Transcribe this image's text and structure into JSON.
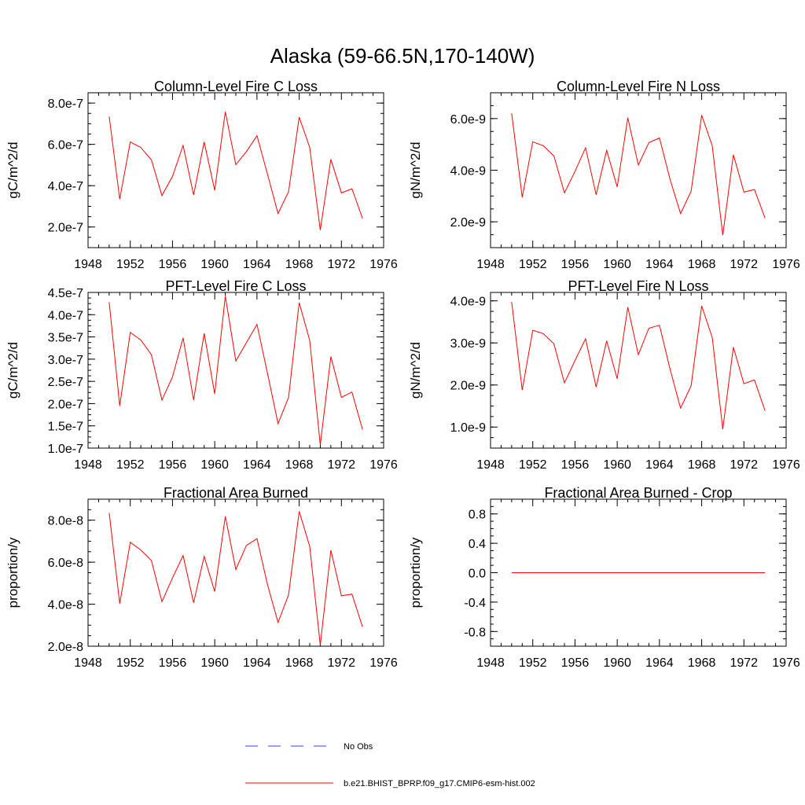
{
  "figure": {
    "title": "Alaska (59-66.5N,170-140W)"
  },
  "colors": {
    "model": "#ff0000",
    "obs": "#3b3bff"
  },
  "legend": [
    {
      "label": "No Obs",
      "style": "dashed",
      "color": "#3b3bff"
    },
    {
      "label": "b.e21.BHIST_BPRP.f09_g17.CMIP6-esm-hist.002",
      "style": "solid",
      "color": "#ff0000"
    }
  ],
  "chart_data": [
    {
      "type": "line",
      "title": "Column-Level Fire C Loss",
      "ylabel": "gC/m^2/d",
      "xlim": [
        1948,
        1976
      ],
      "ylim": [
        1e-07,
        8.5e-07
      ],
      "xticks": [
        1948,
        1952,
        1956,
        1960,
        1964,
        1968,
        1972,
        1976
      ],
      "xtick_labels": [
        "1948",
        "1952",
        "1956",
        "1960",
        "1964",
        "1968",
        "1972",
        "1976"
      ],
      "yticks": [
        2e-07,
        4e-07,
        6e-07,
        8e-07
      ],
      "ytick_labels": [
        "2.0e-7",
        "4.0e-7",
        "6.0e-7",
        "8.0e-7"
      ],
      "x": [
        1950,
        1951,
        1952,
        1953,
        1954,
        1955,
        1956,
        1957,
        1958,
        1959,
        1960,
        1961,
        1962,
        1963,
        1964,
        1965,
        1966,
        1967,
        1968,
        1969,
        1970,
        1971,
        1972,
        1973,
        1974
      ],
      "series": [
        {
          "values": [
            7.35e-07,
            3.35e-07,
            6.12e-07,
            5.85e-07,
            5.25e-07,
            3.52e-07,
            4.45e-07,
            5.95e-07,
            3.55e-07,
            6.12e-07,
            3.78e-07,
            7.58e-07,
            5.02e-07,
            5.65e-07,
            6.42e-07,
            4.55e-07,
            2.65e-07,
            3.72e-07,
            7.32e-07,
            5.85e-07,
            1.85e-07,
            5.28e-07,
            3.65e-07,
            3.85e-07,
            2.42e-07
          ]
        }
      ]
    },
    {
      "type": "line",
      "title": "Column-Level Fire N Loss",
      "ylabel": "gN/m^2/d",
      "xlim": [
        1948,
        1976
      ],
      "ylim": [
        1e-09,
        7e-09
      ],
      "xticks": [
        1948,
        1952,
        1956,
        1960,
        1964,
        1968,
        1972,
        1976
      ],
      "xtick_labels": [
        "1948",
        "1952",
        "1956",
        "1960",
        "1964",
        "1968",
        "1972",
        "1976"
      ],
      "yticks": [
        2e-09,
        4e-09,
        6e-09
      ],
      "ytick_labels": [
        "2.0e-9",
        "4.0e-9",
        "6.0e-9"
      ],
      "x": [
        1950,
        1951,
        1952,
        1953,
        1954,
        1955,
        1956,
        1957,
        1958,
        1959,
        1960,
        1961,
        1962,
        1963,
        1964,
        1965,
        1966,
        1967,
        1968,
        1969,
        1970,
        1971,
        1972,
        1973,
        1974
      ],
      "series": [
        {
          "values": [
            6.2e-09,
            2.95e-09,
            5.1e-09,
            4.95e-09,
            4.55e-09,
            3.12e-09,
            3.95e-09,
            4.87e-09,
            3.05e-09,
            4.77e-09,
            3.35e-09,
            6.03e-09,
            4.2e-09,
            5.07e-09,
            5.25e-09,
            3.65e-09,
            2.32e-09,
            3.18e-09,
            6.13e-09,
            4.95e-09,
            1.48e-09,
            4.6e-09,
            3.15e-09,
            3.25e-09,
            2.15e-09
          ]
        }
      ]
    },
    {
      "type": "line",
      "title": "PFT-Level Fire C Loss",
      "ylabel": "gC/m^2/d",
      "xlim": [
        1948,
        1976
      ],
      "ylim": [
        1e-07,
        4.5e-07
      ],
      "xticks": [
        1948,
        1952,
        1956,
        1960,
        1964,
        1968,
        1972,
        1976
      ],
      "xtick_labels": [
        "1948",
        "1952",
        "1956",
        "1960",
        "1964",
        "1968",
        "1972",
        "1976"
      ],
      "yticks": [
        1e-07,
        1.5e-07,
        2e-07,
        2.5e-07,
        3e-07,
        3.5e-07,
        4e-07,
        4.5e-07
      ],
      "ytick_labels": [
        "1.0e-7",
        "1.5e-7",
        "2.0e-7",
        "2.5e-7",
        "3.0e-7",
        "3.5e-7",
        "4.0e-7",
        "4.5e-7"
      ],
      "x": [
        1950,
        1951,
        1952,
        1953,
        1954,
        1955,
        1956,
        1957,
        1958,
        1959,
        1960,
        1961,
        1962,
        1963,
        1964,
        1965,
        1966,
        1967,
        1968,
        1969,
        1970,
        1971,
        1972,
        1973,
        1974
      ],
      "series": [
        {
          "values": [
            4.28e-07,
            1.95e-07,
            3.6e-07,
            3.43e-07,
            3.1e-07,
            2.08e-07,
            2.6e-07,
            3.48e-07,
            2.08e-07,
            3.58e-07,
            2.22e-07,
            4.42e-07,
            2.96e-07,
            3.37e-07,
            3.78e-07,
            2.68e-07,
            1.55e-07,
            2.14e-07,
            4.27e-07,
            3.42e-07,
            1.07e-07,
            3.06e-07,
            2.14e-07,
            2.26e-07,
            1.42e-07
          ]
        }
      ]
    },
    {
      "type": "line",
      "title": "PFT-Level Fire N Loss",
      "ylabel": "gN/m^2/d",
      "xlim": [
        1948,
        1976
      ],
      "ylim": [
        5e-10,
        4.2e-09
      ],
      "xticks": [
        1948,
        1952,
        1956,
        1960,
        1964,
        1968,
        1972,
        1976
      ],
      "xtick_labels": [
        "1948",
        "1952",
        "1956",
        "1960",
        "1964",
        "1968",
        "1972",
        "1976"
      ],
      "yticks": [
        1e-09,
        2e-09,
        3e-09,
        4e-09
      ],
      "ytick_labels": [
        "1.0e-9",
        "2.0e-9",
        "3.0e-9",
        "4.0e-9"
      ],
      "x": [
        1950,
        1951,
        1952,
        1953,
        1954,
        1955,
        1956,
        1957,
        1958,
        1959,
        1960,
        1961,
        1962,
        1963,
        1964,
        1965,
        1966,
        1967,
        1968,
        1969,
        1970,
        1971,
        1972,
        1973,
        1974
      ],
      "series": [
        {
          "values": [
            3.97e-09,
            1.88e-09,
            3.3e-09,
            3.22e-09,
            2.98e-09,
            2.05e-09,
            2.58e-09,
            3.1e-09,
            1.95e-09,
            3.05e-09,
            2.15e-09,
            3.85e-09,
            2.72e-09,
            3.35e-09,
            3.42e-09,
            2.38e-09,
            1.45e-09,
            1.98e-09,
            3.88e-09,
            3.13e-09,
            9.5e-10,
            2.9e-09,
            2.03e-09,
            2.12e-09,
            1.39e-09
          ]
        }
      ]
    },
    {
      "type": "line",
      "title": "Fractional Area Burned",
      "ylabel": "proportion/y",
      "xlim": [
        1948,
        1976
      ],
      "ylim": [
        2e-08,
        9e-08
      ],
      "xticks": [
        1948,
        1952,
        1956,
        1960,
        1964,
        1968,
        1972,
        1976
      ],
      "xtick_labels": [
        "1948",
        "1952",
        "1956",
        "1960",
        "1964",
        "1968",
        "1972",
        "1976"
      ],
      "yticks": [
        2e-08,
        4e-08,
        6e-08,
        8e-08
      ],
      "ytick_labels": [
        "2.0e-8",
        "4.0e-8",
        "6.0e-8",
        "8.0e-8"
      ],
      "x": [
        1950,
        1951,
        1952,
        1953,
        1954,
        1955,
        1956,
        1957,
        1958,
        1959,
        1960,
        1961,
        1962,
        1963,
        1964,
        1965,
        1966,
        1967,
        1968,
        1969,
        1970,
        1971,
        1972,
        1973,
        1974
      ],
      "series": [
        {
          "values": [
            8.35e-08,
            4.03e-08,
            6.95e-08,
            6.58e-08,
            6.08e-08,
            4.12e-08,
            5.25e-08,
            6.32e-08,
            4.07e-08,
            6.28e-08,
            4.6e-08,
            8.18e-08,
            5.65e-08,
            6.8e-08,
            7.12e-08,
            4.93e-08,
            3.13e-08,
            4.45e-08,
            8.42e-08,
            6.75e-08,
            2.05e-08,
            6.57e-08,
            4.4e-08,
            4.48e-08,
            2.93e-08
          ]
        }
      ]
    },
    {
      "type": "line",
      "title": "Fractional Area Burned - Crop",
      "ylabel": "proportion/y",
      "xlim": [
        1948,
        1976
      ],
      "ylim": [
        -1.0,
        1.0
      ],
      "xticks": [
        1948,
        1952,
        1956,
        1960,
        1964,
        1968,
        1972,
        1976
      ],
      "xtick_labels": [
        "1948",
        "1952",
        "1956",
        "1960",
        "1964",
        "1968",
        "1972",
        "1976"
      ],
      "yticks": [
        -0.8,
        -0.4,
        0.0,
        0.4,
        0.8
      ],
      "ytick_labels": [
        "-0.8",
        "-0.4",
        "0.0",
        "0.4",
        "0.8"
      ],
      "x": [
        1950,
        1951,
        1952,
        1953,
        1954,
        1955,
        1956,
        1957,
        1958,
        1959,
        1960,
        1961,
        1962,
        1963,
        1964,
        1965,
        1966,
        1967,
        1968,
        1969,
        1970,
        1971,
        1972,
        1973,
        1974
      ],
      "series": [
        {
          "values": [
            0,
            0,
            0,
            0,
            0,
            0,
            0,
            0,
            0,
            0,
            0,
            0,
            0,
            0,
            0,
            0,
            0,
            0,
            0,
            0,
            0,
            0,
            0,
            0,
            0
          ]
        }
      ]
    }
  ]
}
